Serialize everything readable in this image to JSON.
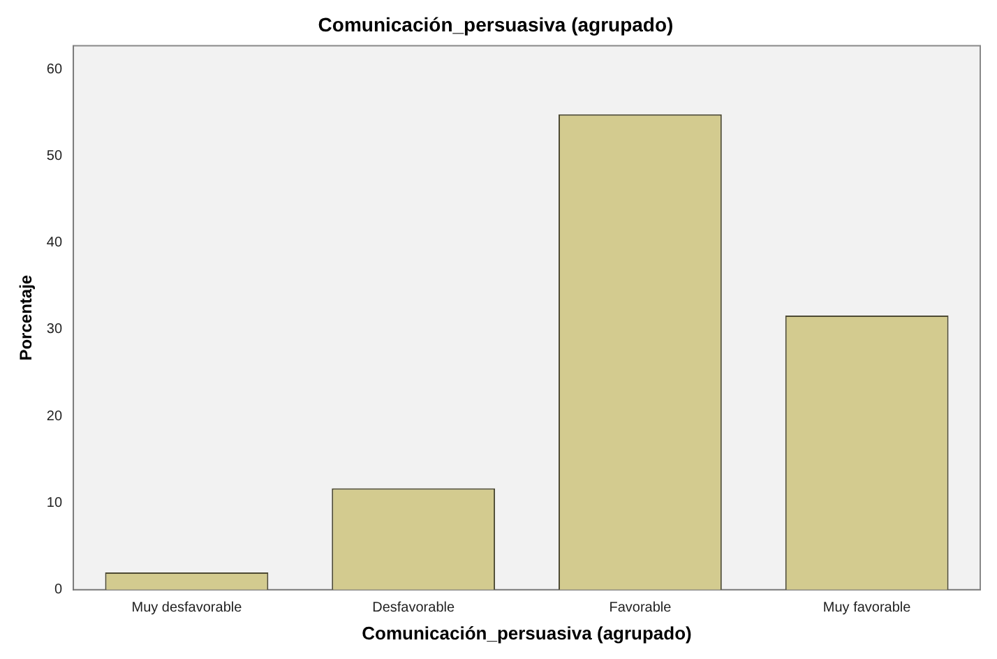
{
  "chart_data": {
    "type": "bar",
    "title": "Comunicación_persuasiva (agrupado)",
    "xlabel": "Comunicación_persuasiva (agrupado)",
    "ylabel": "Porcentaje",
    "categories": [
      "Muy desfavorable",
      "Desfavorable",
      "Favorable",
      "Muy favorable"
    ],
    "values": [
      2,
      11.7,
      54.8,
      31.6
    ],
    "color": "#d3cb8f",
    "ylim": [
      0,
      62.7
    ],
    "yticks": [
      0,
      10,
      20,
      30,
      40,
      50,
      60
    ],
    "grid": false,
    "legend": false
  }
}
